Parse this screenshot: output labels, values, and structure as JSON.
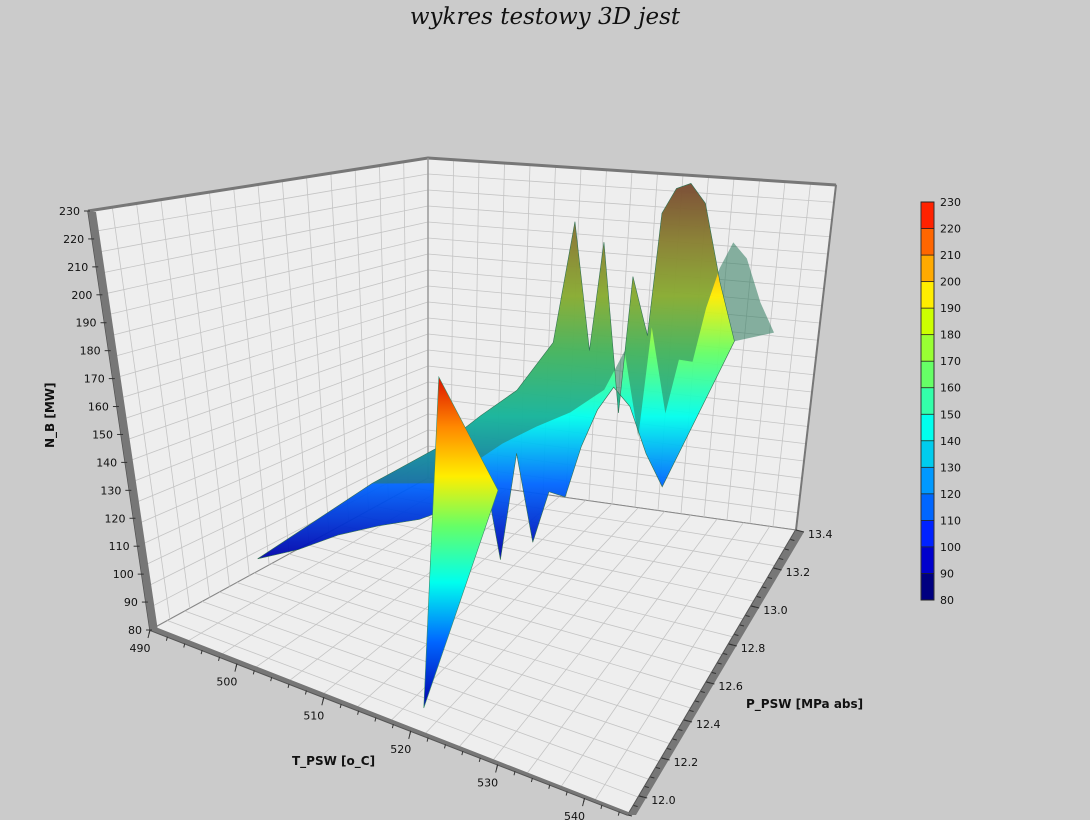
{
  "chart_data": {
    "type": "surface3d",
    "title": "wykres testowy 3D jest",
    "x_axis": {
      "label": "T_PSW [o_C]",
      "ticks": [
        490,
        500,
        510,
        520,
        530,
        540
      ],
      "range": [
        490,
        545
      ]
    },
    "y_axis": {
      "label": "P_PSW [MPa abs]",
      "ticks": [
        "12.0",
        "12.2",
        "12.4",
        "12.6",
        "12.8",
        "13.0",
        "13.2",
        "13.4"
      ],
      "range": [
        11.9,
        13.4
      ]
    },
    "z_axis": {
      "label": "N_B [MW]",
      "ticks": [
        80,
        90,
        100,
        110,
        120,
        130,
        140,
        150,
        160,
        170,
        180,
        190,
        200,
        210,
        220,
        230
      ],
      "range": [
        80,
        230
      ]
    },
    "colorbar": {
      "ticks": [
        80,
        90,
        100,
        110,
        120,
        130,
        140,
        150,
        160,
        170,
        180,
        190,
        200,
        210,
        220,
        230
      ],
      "colors": [
        "#000080",
        "#0000cc",
        "#0022ff",
        "#0066ff",
        "#0099ff",
        "#00ccee",
        "#00ffee",
        "#33ffaa",
        "#66ff66",
        "#99ff33",
        "#ccff00",
        "#ffee00",
        "#ffaa00",
        "#ff6600",
        "#ff2200"
      ]
    },
    "surface_profile": {
      "description_note": "",
      "x": [
        493,
        498,
        503,
        508,
        513,
        518,
        521,
        523,
        525,
        527,
        529,
        531,
        533,
        535,
        537,
        539,
        541,
        543
      ],
      "ridge_z": [
        95,
        105,
        115,
        128,
        140,
        160,
        205,
        160,
        200,
        140,
        190,
        170,
        215,
        225,
        228,
        222,
        195,
        175
      ],
      "base_z": [
        92,
        100,
        110,
        118,
        125,
        135,
        150,
        120,
        160,
        130,
        150,
        150,
        170,
        185,
        195,
        190,
        175,
        165
      ]
    }
  }
}
